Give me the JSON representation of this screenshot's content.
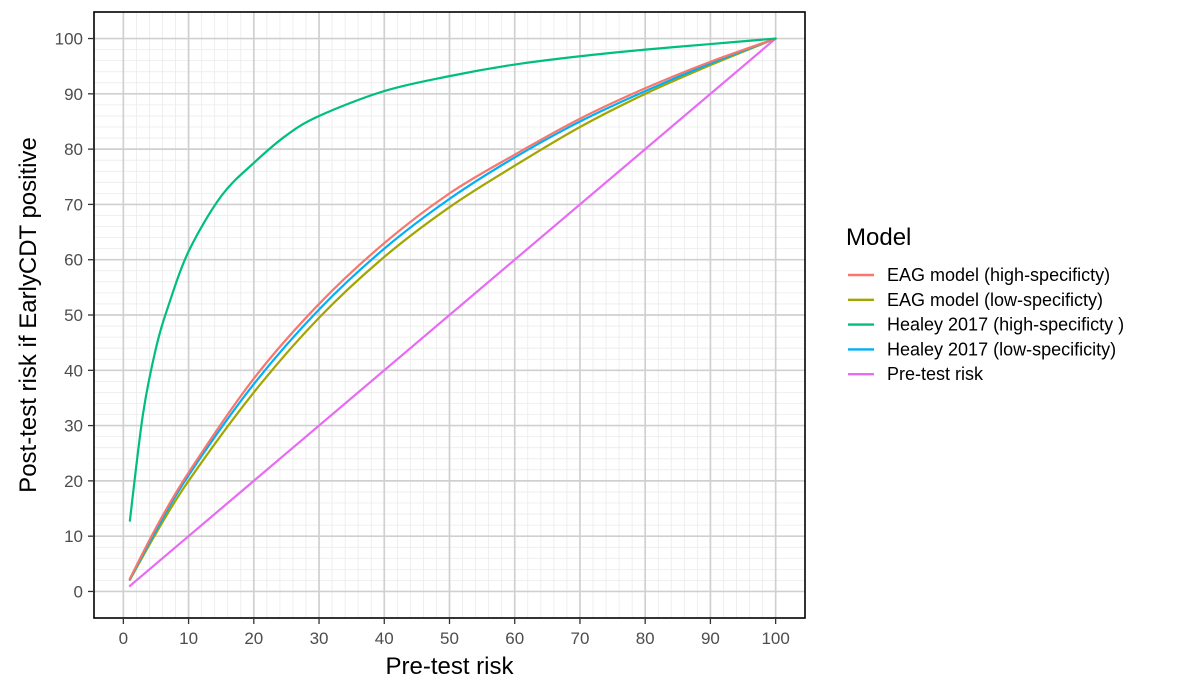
{
  "chart_data": {
    "type": "line",
    "title": "",
    "xlabel": "Pre-test risk",
    "ylabel": "Post-test risk if EarlyCDT positive",
    "xlim": [
      0,
      100
    ],
    "ylim": [
      0,
      100
    ],
    "xticks": [
      0,
      10,
      20,
      30,
      40,
      50,
      60,
      70,
      80,
      90,
      100
    ],
    "yticks": [
      0,
      10,
      20,
      30,
      40,
      50,
      60,
      70,
      80,
      90,
      100
    ],
    "grid": true,
    "legend_position": "right",
    "legend_title": "Model",
    "series": [
      {
        "name": "EAG model (high-specificty)",
        "color": "#F8766D",
        "points": [
          [
            1,
            2.3
          ],
          [
            5,
            11.5
          ],
          [
            10,
            21.5
          ],
          [
            20,
            38.5
          ],
          [
            30,
            52
          ],
          [
            40,
            63
          ],
          [
            50,
            72
          ],
          [
            60,
            79
          ],
          [
            70,
            85.5
          ],
          [
            80,
            91
          ],
          [
            90,
            95.8
          ],
          [
            100,
            100
          ]
        ]
      },
      {
        "name": "EAG model (low-specificty)",
        "color": "#A3A500",
        "points": [
          [
            1,
            2.1
          ],
          [
            5,
            10.5
          ],
          [
            10,
            20
          ],
          [
            20,
            36
          ],
          [
            30,
            49.5
          ],
          [
            40,
            60.5
          ],
          [
            50,
            69.5
          ],
          [
            60,
            77
          ],
          [
            70,
            84
          ],
          [
            80,
            90
          ],
          [
            90,
            95.2
          ],
          [
            100,
            100
          ]
        ]
      },
      {
        "name": "Healey 2017 (high-specificty )",
        "color": "#00BF7D",
        "points": [
          [
            1,
            12.8
          ],
          [
            3,
            32
          ],
          [
            5,
            44
          ],
          [
            7,
            52
          ],
          [
            10,
            61.5
          ],
          [
            15,
            71.5
          ],
          [
            20,
            77.5
          ],
          [
            25,
            82.5
          ],
          [
            30,
            86
          ],
          [
            40,
            90.5
          ],
          [
            50,
            93.2
          ],
          [
            60,
            95.3
          ],
          [
            70,
            96.8
          ],
          [
            80,
            98
          ],
          [
            90,
            99
          ],
          [
            100,
            100
          ]
        ]
      },
      {
        "name": "Healey 2017 (low-specificity)",
        "color": "#00B0F6",
        "points": [
          [
            1,
            2.2
          ],
          [
            5,
            11
          ],
          [
            10,
            21
          ],
          [
            20,
            37.5
          ],
          [
            30,
            51
          ],
          [
            40,
            62
          ],
          [
            50,
            71
          ],
          [
            60,
            78.5
          ],
          [
            70,
            85
          ],
          [
            80,
            90.5
          ],
          [
            90,
            95.5
          ],
          [
            100,
            100
          ]
        ]
      },
      {
        "name": "Pre-test risk",
        "color": "#E76BF3",
        "points": [
          [
            1,
            1
          ],
          [
            100,
            100
          ]
        ]
      }
    ]
  }
}
